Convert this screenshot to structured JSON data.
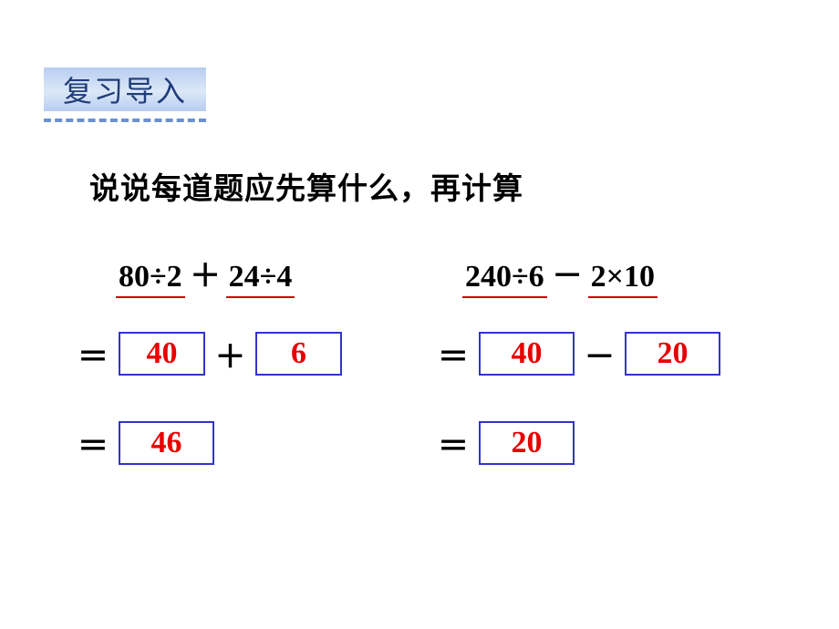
{
  "tag": {
    "label": "复习导入"
  },
  "prompt": "说说每道题应先算什么，再计算",
  "left": {
    "part1": "80÷2",
    "op_mid": "＋",
    "part2": "24÷4",
    "step1_a": "40",
    "step1_op": "＋",
    "step1_b": "6",
    "result": "46"
  },
  "right": {
    "part1": "240÷6",
    "op_mid": "－",
    "part2": "2×10",
    "step1_a": "40",
    "step1_op": "－",
    "step1_b": "20",
    "result": "20"
  },
  "colors": {
    "tag_gradient_top": "#b8cdf0",
    "tag_gradient_mid": "#dce8f8",
    "dash": "#6b91d0",
    "tag_text": "#203d78",
    "underline": "#cc0000",
    "box_border": "#3333cc",
    "box_text": "#e60000",
    "body_text": "#000000"
  },
  "fonts": {
    "tag_fontsize": 32,
    "prompt_fontsize": 33,
    "math_fontsize": 34
  }
}
